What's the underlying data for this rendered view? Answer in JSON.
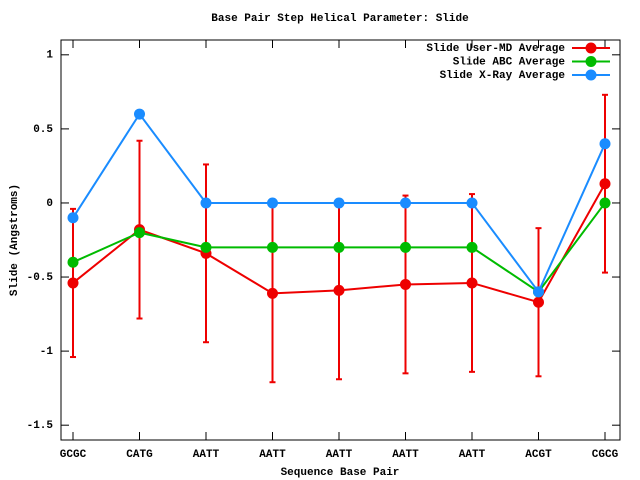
{
  "chart_data": {
    "type": "line",
    "title": "Base Pair Step Helical Parameter: Slide",
    "x_label": "Sequence Base Pair",
    "y_label": "Slide (Angstroms)",
    "categories": [
      "GCGC",
      "CATG",
      "AATT",
      "AATT",
      "AATT",
      "AATT",
      "AATT",
      "ACGT",
      "CGCG"
    ],
    "ylim": [
      -1.6,
      1.1
    ],
    "yticks": [
      1,
      0.5,
      0,
      -0.5,
      -1,
      -1.5
    ],
    "legend_position": "top-right",
    "series": [
      {
        "name": "Slide User-MD Average",
        "color": "#ee0000",
        "values": [
          -0.54,
          -0.18,
          -0.34,
          -0.61,
          -0.59,
          -0.55,
          -0.54,
          -0.67,
          0.13
        ],
        "errors": [
          0.5,
          0.6,
          0.6,
          0.6,
          0.6,
          0.6,
          0.6,
          0.5,
          0.6
        ]
      },
      {
        "name": "Slide ABC Average",
        "color": "#00bb00",
        "values": [
          -0.4,
          -0.2,
          -0.3,
          -0.3,
          -0.3,
          -0.3,
          -0.3,
          -0.6,
          0
        ]
      },
      {
        "name": "Slide X-Ray Average",
        "color": "#1a8cff",
        "values": [
          -0.1,
          0.6,
          0,
          0,
          0,
          0,
          0,
          -0.6,
          0.4
        ]
      }
    ]
  }
}
